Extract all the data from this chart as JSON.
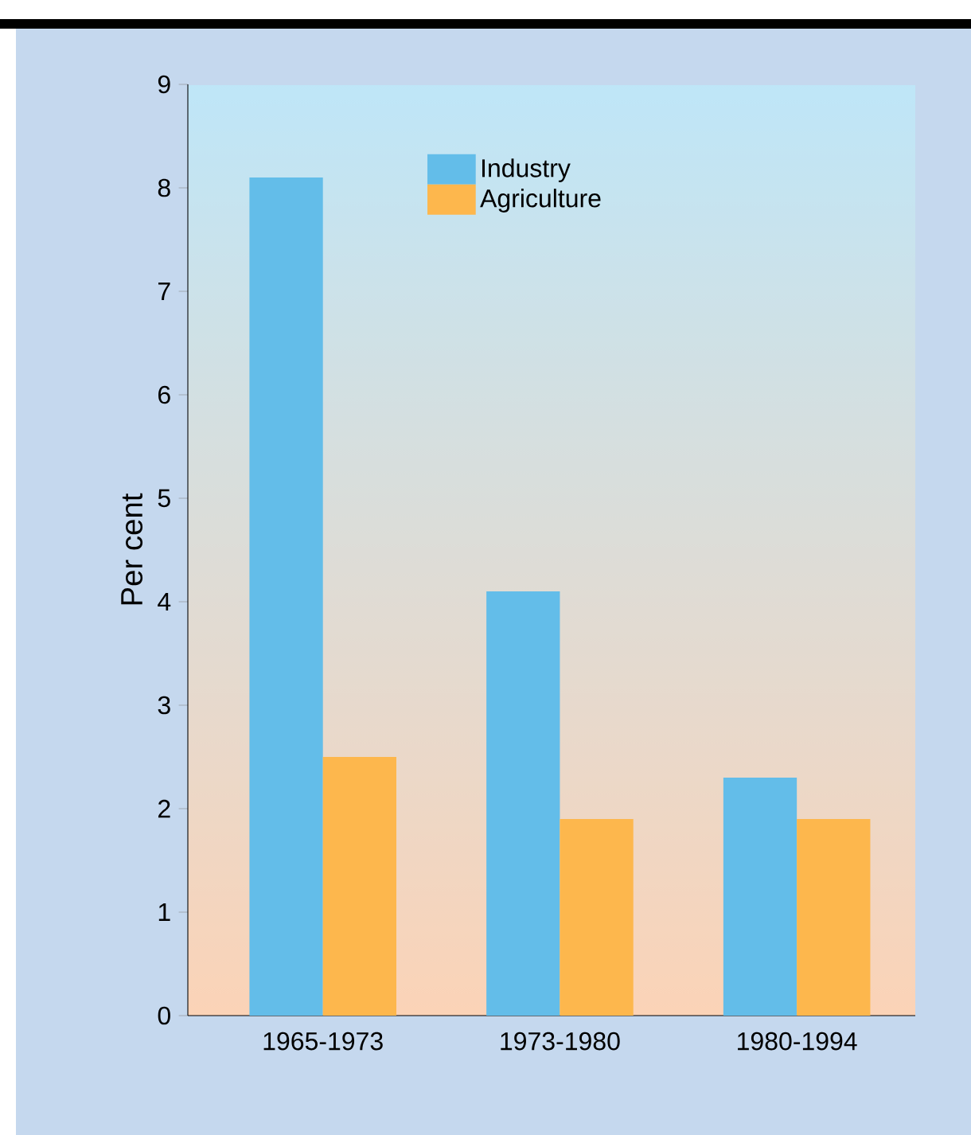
{
  "chart_data": {
    "type": "bar",
    "ylabel": "Per cent",
    "categories": [
      "1965-1973",
      "1973-1980",
      "1980-1994"
    ],
    "series": [
      {
        "name": "Industry",
        "color": "#63bde9",
        "values": [
          8.1,
          4.1,
          2.3
        ]
      },
      {
        "name": "Agriculture",
        "color": "#fdb74d",
        "values": [
          2.5,
          1.9,
          1.9
        ]
      }
    ],
    "ylim": [
      0,
      9
    ],
    "yticks": [
      0,
      1,
      2,
      3,
      4,
      5,
      6,
      7,
      8,
      9
    ],
    "legend": "top"
  }
}
